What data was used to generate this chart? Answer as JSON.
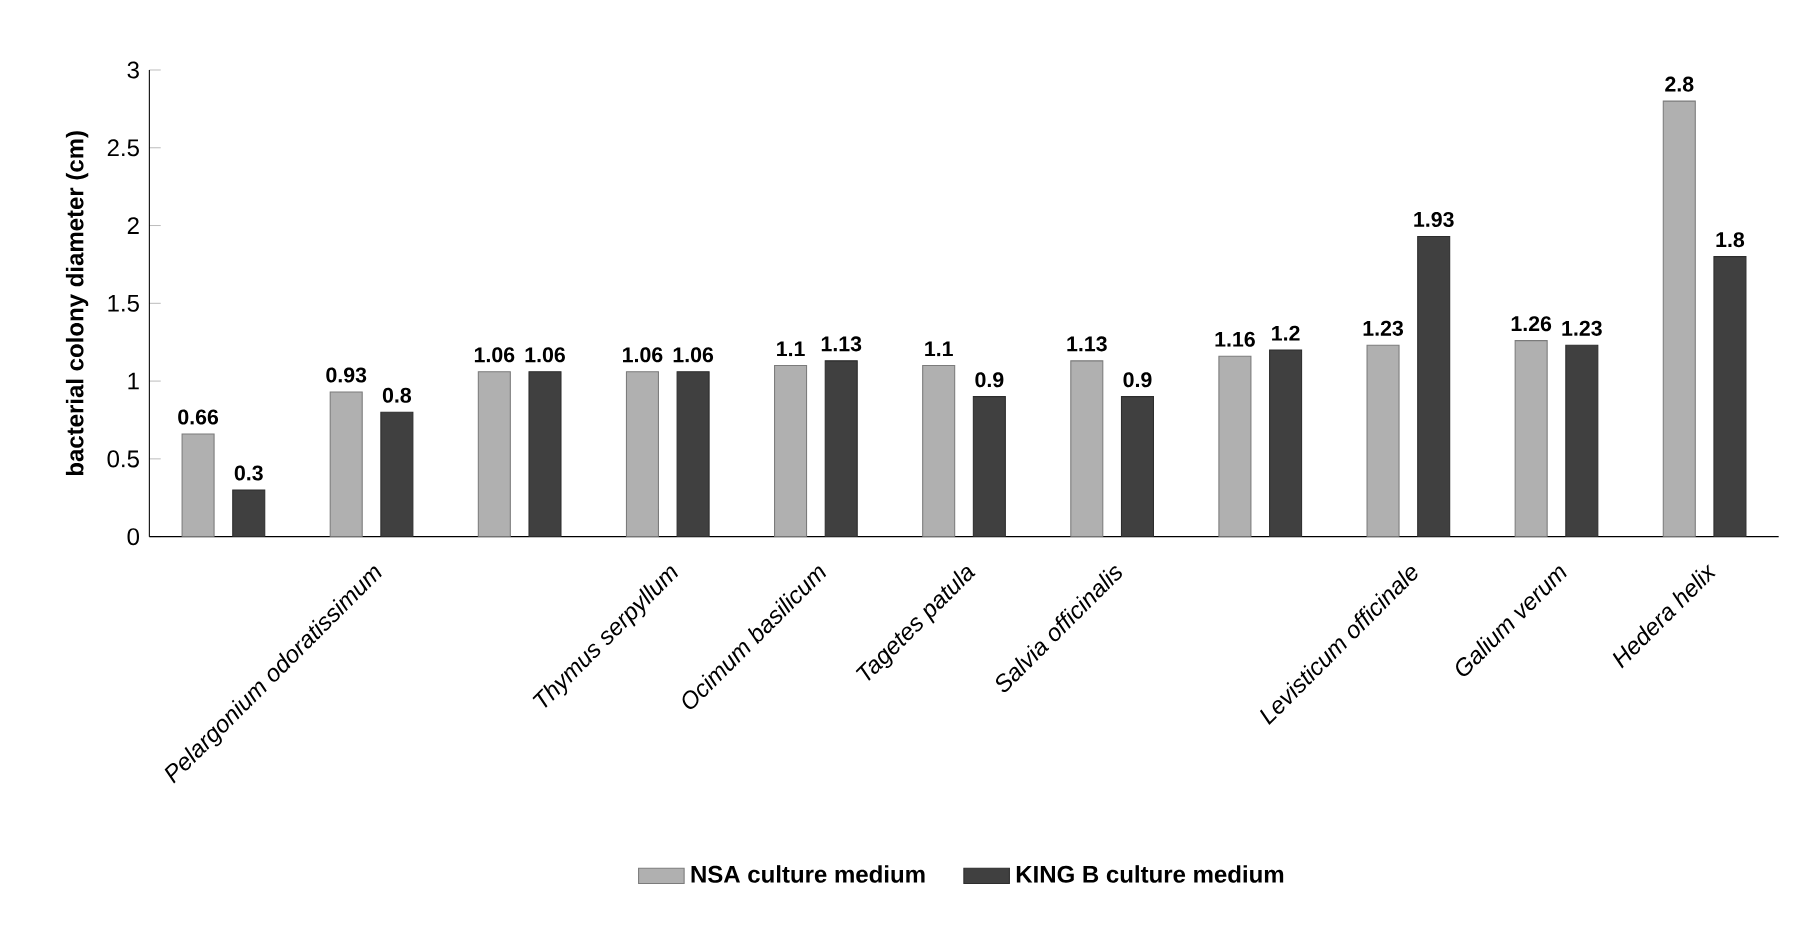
{
  "chart_data": {
    "type": "bar",
    "ylabel": "bacterial colony diameter  (cm)",
    "categories": [
      null,
      "Pelargonium odoratissimum",
      null,
      "Thymus serpyllum",
      "Ocimum basilicum",
      "Tagetes patula",
      "Salvia officinalis",
      null,
      "Levisticum officinale",
      "Galium verum",
      "Hedera helix"
    ],
    "series": [
      {
        "name": "NSA culture medium",
        "color": "#b0b0b0",
        "values": [
          0.66,
          0.93,
          1.06,
          1.06,
          1.1,
          1.1,
          1.13,
          1.16,
          1.23,
          1.26,
          2.8
        ]
      },
      {
        "name": "KING B culture medium",
        "color": "#404040",
        "values": [
          0.3,
          0.8,
          1.06,
          1.06,
          1.13,
          0.9,
          0.9,
          1.2,
          1.93,
          1.23,
          1.8
        ]
      }
    ],
    "ylim": [
      0,
      3
    ],
    "yticks": [
      0,
      0.5,
      1,
      1.5,
      2,
      2.5,
      3
    ],
    "data_labels": true,
    "legend": "bottom",
    "grid": false
  }
}
